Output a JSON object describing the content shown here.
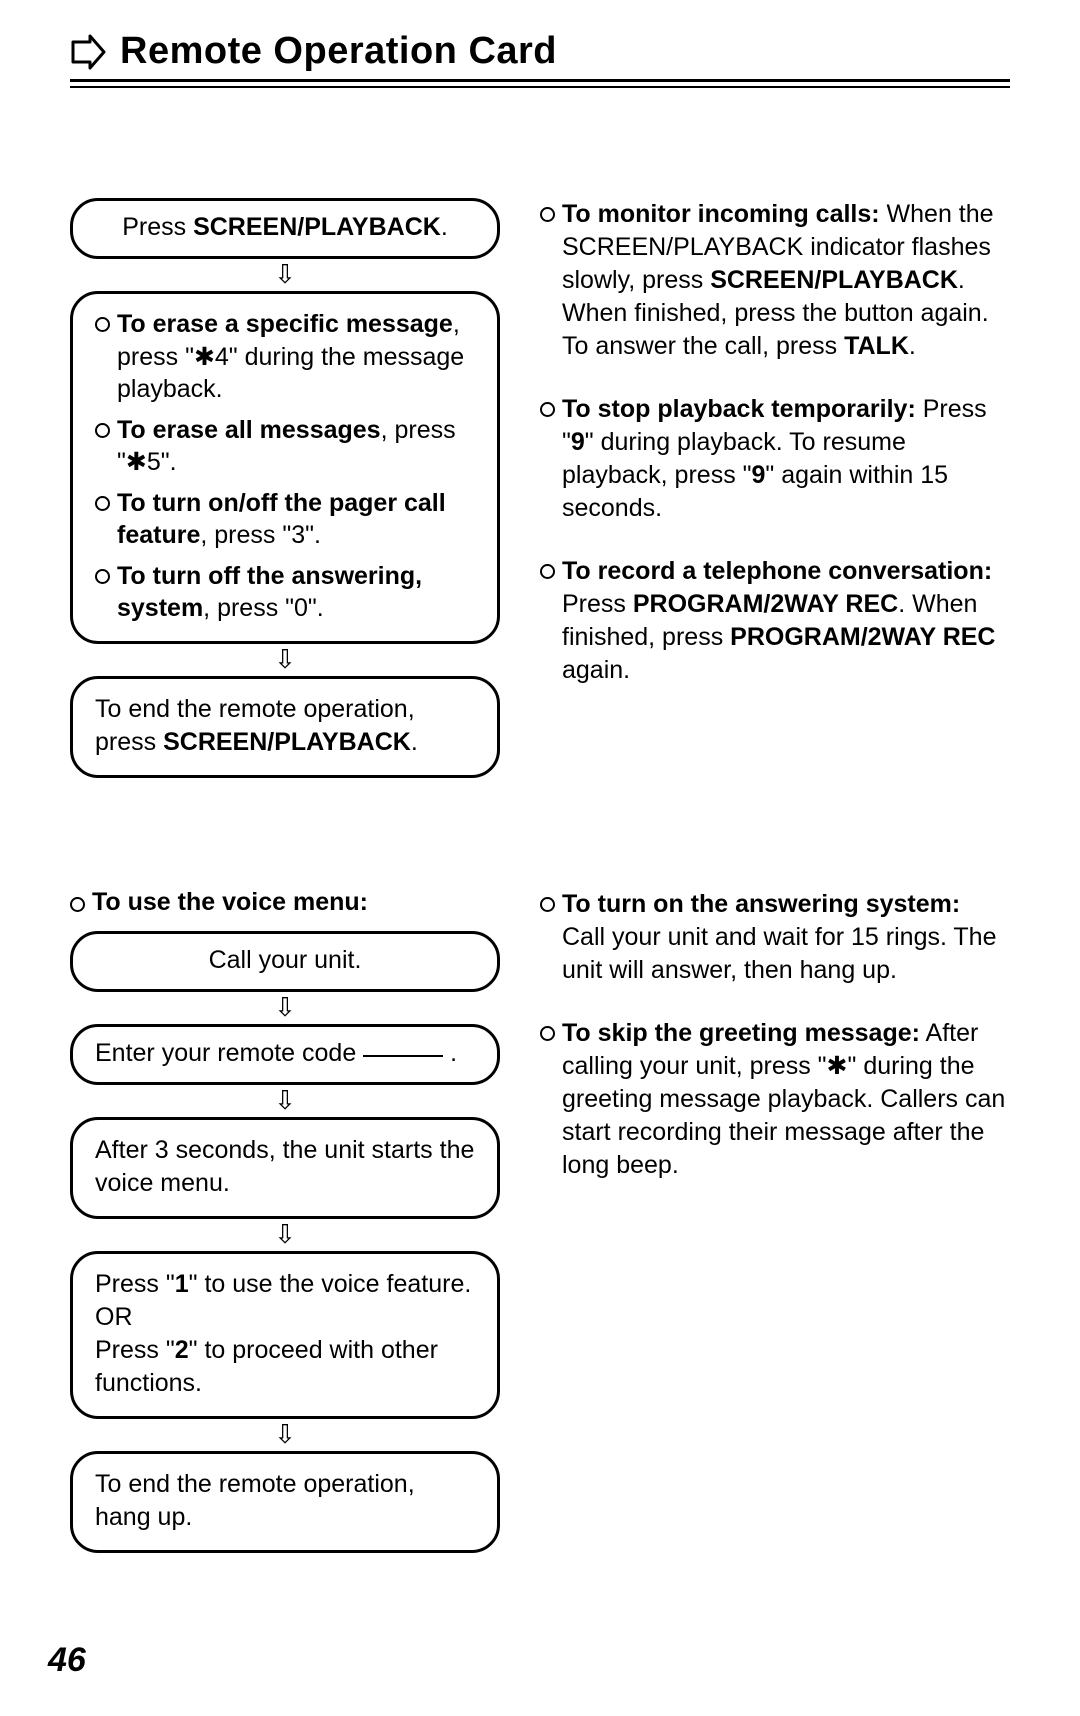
{
  "title": "Remote Operation Card",
  "page_number": "46",
  "flow1": {
    "box1_prefix": "Press ",
    "box1_bold": "SCREEN/PLAYBACK",
    "box1_suffix": ".",
    "items": [
      {
        "bold": "To erase a specific message",
        "rest": ", press \"✱4\" during the message playback."
      },
      {
        "bold": "To erase all messages",
        "rest": ", press \"✱5\"."
      },
      {
        "bold": "To turn on/off the pager call feature",
        "rest": ", press \"3\"."
      },
      {
        "bold": "To turn off the answering, system",
        "rest": ", press \"0\"."
      }
    ],
    "box3_line1": "To end the remote operation,",
    "box3_line2_prefix": "press ",
    "box3_line2_bold": "SCREEN/PLAYBACK",
    "box3_line2_suffix": "."
  },
  "right1": [
    {
      "bold": "To monitor incoming calls:",
      "segments": [
        {
          "t": " When the SCREEN/PLAYBACK indicator flashes slowly, press "
        },
        {
          "t": "SCREEN/PLAYBACK",
          "b": true
        },
        {
          "t": ". When finished, press the button again. To answer the call, press "
        },
        {
          "t": "TALK",
          "b": true
        },
        {
          "t": "."
        }
      ]
    },
    {
      "bold": "To stop playback temporarily:",
      "segments": [
        {
          "t": " Press \""
        },
        {
          "t": "9",
          "b": true
        },
        {
          "t": "\" during playback. To resume playback, press \""
        },
        {
          "t": "9",
          "b": true
        },
        {
          "t": "\" again within 15 seconds."
        }
      ]
    },
    {
      "bold": "To record a telephone conversation:",
      "segments": [
        {
          "t": " Press "
        },
        {
          "t": "PROGRAM/2WAY REC",
          "b": true
        },
        {
          "t": ". When finished, press "
        },
        {
          "t": "PROGRAM/2WAY REC",
          "b": true
        },
        {
          "t": " again."
        }
      ]
    }
  ],
  "voice": {
    "header": "To use the voice menu:",
    "b1": "Call your unit.",
    "b2_prefix": "Enter your remote code ",
    "b2_suffix": " .",
    "b3": "After 3 seconds, the unit starts the voice menu.",
    "b4_l1a": "Press \"",
    "b4_l1b": "1",
    "b4_l1c": "\" to use the voice feature.",
    "b4_or": "OR",
    "b4_l2a": "Press \"",
    "b4_l2b": "2",
    "b4_l2c": "\" to proceed with other functions.",
    "b5": "To end the remote operation, hang up."
  },
  "right2": [
    {
      "bold": "To turn on the answering system:",
      "segments": [
        {
          "t": " Call your unit and wait for 15 rings. The unit will answer, then hang up."
        }
      ]
    },
    {
      "bold": "To skip the greeting message:",
      "segments": [
        {
          "t": " After calling your unit, press \"✱\" during the greeting message playback. Callers can start recording their message after the long beep."
        }
      ]
    }
  ]
}
